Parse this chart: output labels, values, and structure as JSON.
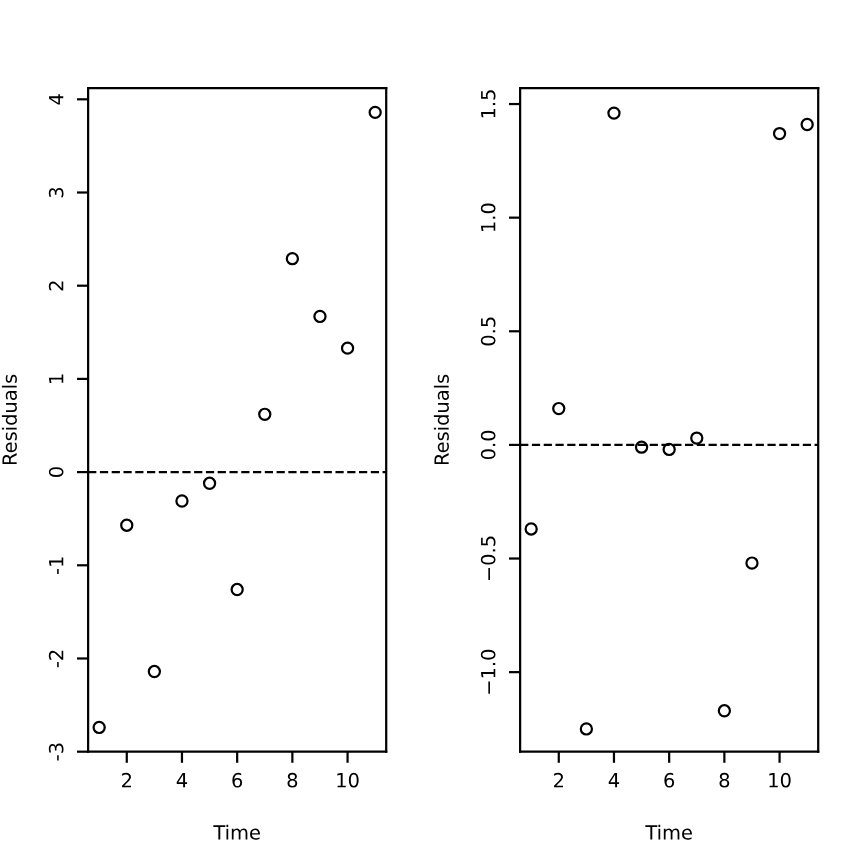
{
  "chart_data": [
    {
      "type": "scatter",
      "xlabel": "Time",
      "ylabel": "Residuals",
      "x": [
        1,
        2,
        3,
        4,
        5,
        6,
        7,
        8,
        9,
        10,
        11
      ],
      "series": [
        {
          "color": "#000000",
          "values": [
            -2.74,
            -0.57,
            -2.14,
            -0.31,
            -0.12,
            -1.26,
            0.62,
            2.29,
            1.67,
            1.33,
            3.86
          ]
        }
      ],
      "xlim": [
        0.6,
        11.4
      ],
      "xticks": [
        2,
        4,
        6,
        8,
        10
      ],
      "ylim": [
        -3,
        4.12
      ],
      "yticks": [
        -3,
        -2,
        -1,
        0,
        1,
        2,
        3,
        4
      ],
      "ref_lines": [
        {
          "axis": "y",
          "value": 0,
          "line_style": "dashed",
          "color": "#000000"
        }
      ],
      "marker": "circle",
      "grid": false,
      "legend": false
    },
    {
      "type": "scatter",
      "xlabel": "Time",
      "ylabel": "Residuals",
      "x": [
        1,
        2,
        3,
        4,
        5,
        6,
        7,
        8,
        9,
        10,
        11
      ],
      "series": [
        {
          "color": "#000000",
          "values": [
            -0.37,
            0.16,
            -1.25,
            1.46,
            -0.01,
            -0.02,
            0.03,
            -1.17,
            -0.52,
            1.37,
            1.41
          ]
        }
      ],
      "xlim": [
        0.6,
        11.4
      ],
      "xticks": [
        2,
        4,
        6,
        8,
        10
      ],
      "ylim": [
        -1.35,
        1.57
      ],
      "yticks": [
        {
          "value": -1.0,
          "label": "−1.0"
        },
        {
          "value": -0.5,
          "label": "−0.5"
        },
        {
          "value": 0.0,
          "label": "0.0"
        },
        {
          "value": 0.5,
          "label": "0.5"
        },
        {
          "value": 1.0,
          "label": "1.0"
        },
        {
          "value": 1.5,
          "label": "1.5"
        }
      ],
      "ref_lines": [
        {
          "axis": "y",
          "value": 0,
          "line_style": "dashed",
          "color": "#000000"
        }
      ],
      "marker": "circle",
      "grid": false,
      "legend": false
    }
  ]
}
